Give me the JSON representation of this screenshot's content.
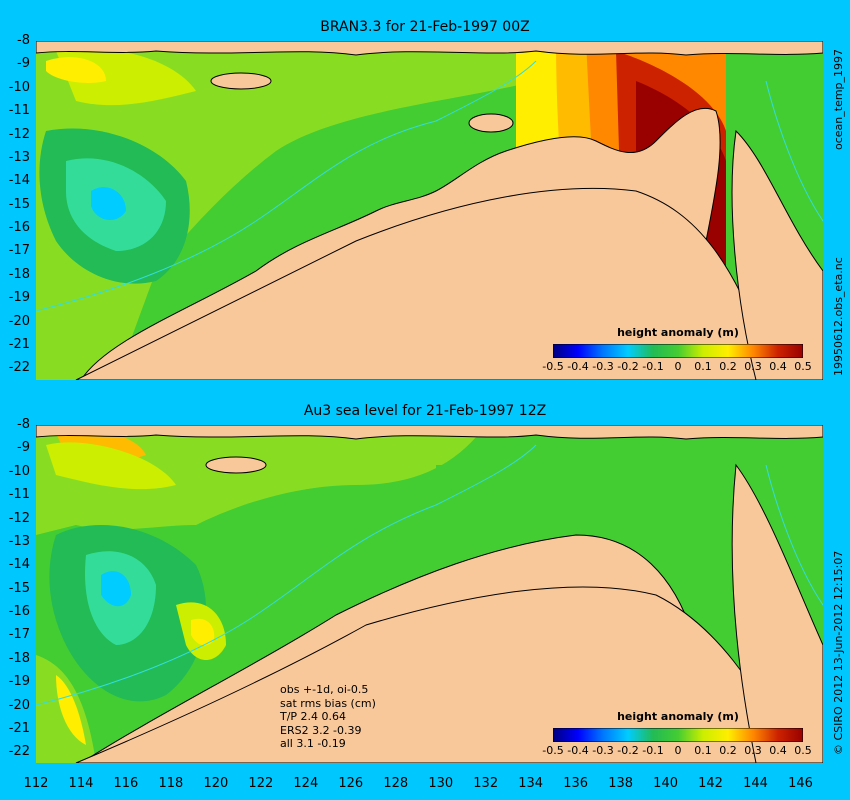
{
  "colors": {
    "background": "#00c8ff",
    "land": "#f9c89a",
    "coast": "#000000",
    "contour_line": "#33dddd",
    "scale": [
      "#00007f",
      "#0000ff",
      "#0077ff",
      "#00ccff",
      "#33dd99",
      "#22bb55",
      "#44cc33",
      "#88dd22",
      "#ccee00",
      "#ffee00",
      "#ffbb00",
      "#ff8800",
      "#ee5500",
      "#cc2200",
      "#990000"
    ]
  },
  "chart_data": [
    {
      "type": "heatmap",
      "title": "BRAN3.3 for 21-Feb-1997 00Z",
      "xlim": [
        112,
        147
      ],
      "ylim": [
        -22.5,
        -8
      ],
      "yticks": [
        "-8",
        "-9",
        "-10",
        "-11",
        "-12",
        "-13",
        "-14",
        "-15",
        "-16",
        "-17",
        "-18",
        "-19",
        "-20",
        "-21",
        "-22"
      ],
      "colorbar": {
        "title": "height anomaly (m)",
        "range": [
          -0.5,
          0.5
        ],
        "ticks": [
          "-0.5",
          "-0.4",
          "-0.3",
          "-0.2",
          "-0.1",
          "0",
          "0.1",
          "0.2",
          "0.3",
          "0.4",
          "0.5"
        ]
      },
      "side_text": [
        "ocean_temp_1997",
        "19950612.obs_eta.nc"
      ]
    },
    {
      "type": "heatmap",
      "title": "Au3 sea level  for 21-Feb-1997 12Z",
      "xlim": [
        112,
        147
      ],
      "ylim": [
        -22.5,
        -8
      ],
      "yticks": [
        "-8",
        "-9",
        "-10",
        "-11",
        "-12",
        "-13",
        "-14",
        "-15",
        "-16",
        "-17",
        "-18",
        "-19",
        "-20",
        "-21",
        "-22"
      ],
      "xticks": [
        "112",
        "114",
        "116",
        "118",
        "120",
        "122",
        "124",
        "126",
        "128",
        "130",
        "132",
        "134",
        "136",
        "138",
        "140",
        "142",
        "144",
        "146"
      ],
      "colorbar": {
        "title": "height anomaly (m)",
        "range": [
          -0.5,
          0.5
        ],
        "ticks": [
          "-0.5",
          "-0.4",
          "-0.3",
          "-0.2",
          "-0.1",
          "0",
          "0.1",
          "0.2",
          "0.3",
          "0.4",
          "0.5"
        ]
      },
      "annotation": [
        "obs +-1d, oi-0.5",
        "sat rms bias (cm)",
        "T/P  2.4 0.64",
        "ERS2 3.2 -0.39",
        "all 3.1 -0.19"
      ],
      "side_text": [
        "© CSIRO 2012  13-Jun-2012 12:15:07"
      ]
    }
  ]
}
